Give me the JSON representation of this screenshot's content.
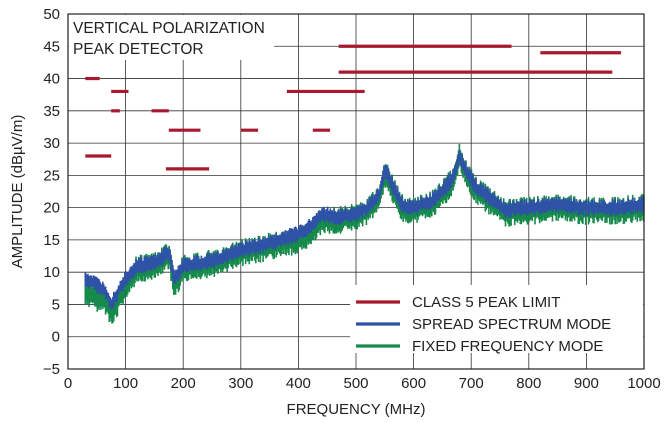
{
  "chart_data": {
    "type": "line",
    "xlabel": "FREQUENCY (MHz)",
    "ylabel": "AMPLITUDE (dBµV/m)",
    "xlim": [
      0,
      1000
    ],
    "ylim": [
      -5,
      50
    ],
    "x_ticks": [
      0,
      100,
      200,
      300,
      400,
      500,
      600,
      700,
      800,
      900,
      1000
    ],
    "y_ticks": [
      -5,
      0,
      5,
      10,
      15,
      20,
      25,
      30,
      35,
      40,
      45,
      50
    ],
    "grid": true,
    "annotation_lines": [
      "VERTICAL POLARIZATION",
      "PEAK DETECTOR"
    ],
    "legend_position": "bottom-right",
    "series": [
      {
        "name": "CLASS 5 PEAK LIMIT",
        "color": "#a6192e",
        "segments": [
          [
            30,
            55,
            40
          ],
          [
            75,
            105,
            38
          ],
          [
            75,
            90,
            35
          ],
          [
            145,
            175,
            35
          ],
          [
            30,
            75,
            28
          ],
          [
            175,
            230,
            32
          ],
          [
            300,
            330,
            32
          ],
          [
            425,
            455,
            32
          ],
          [
            170,
            245,
            26
          ],
          [
            380,
            515,
            38
          ],
          [
            470,
            770,
            45
          ],
          [
            820,
            960,
            44
          ],
          [
            470,
            945,
            41
          ]
        ]
      },
      {
        "name": "SPREAD SPECTRUM MODE",
        "color": "#2e52a6",
        "x": [
          30,
          50,
          65,
          75,
          90,
          100,
          120,
          150,
          175,
          185,
          200,
          230,
          260,
          300,
          350,
          400,
          420,
          440,
          470,
          500,
          520,
          540,
          550,
          560,
          580,
          600,
          630,
          650,
          670,
          680,
          690,
          710,
          740,
          760,
          780,
          800,
          850,
          900,
          950,
          1000
        ],
        "y": [
          9,
          8,
          7,
          5,
          7.5,
          9,
          11,
          11.5,
          13,
          9,
          11,
          11.5,
          12,
          13.5,
          14.5,
          16,
          17,
          19,
          18.5,
          19,
          20,
          22,
          26,
          24,
          20.5,
          20,
          21,
          22.5,
          25,
          28,
          26,
          23,
          21,
          19.5,
          20,
          20,
          20.5,
          20,
          20,
          20.5
        ],
        "band": 1.3
      },
      {
        "name": "FIXED FREQUENCY MODE",
        "color": "#168a4b",
        "x": [
          30,
          50,
          65,
          75,
          90,
          100,
          120,
          150,
          175,
          185,
          200,
          230,
          260,
          300,
          350,
          400,
          420,
          440,
          470,
          500,
          520,
          540,
          550,
          560,
          580,
          600,
          630,
          650,
          670,
          680,
          690,
          710,
          740,
          760,
          780,
          800,
          850,
          900,
          950,
          1000
        ],
        "y": [
          7,
          6,
          5.5,
          3.5,
          6,
          8,
          10.5,
          11,
          12.5,
          8,
          10.5,
          11,
          11.5,
          13,
          14,
          15,
          16,
          18,
          18,
          18.5,
          19.5,
          21.5,
          25.5,
          23.5,
          20,
          19.5,
          20.5,
          22,
          24.5,
          28,
          25.5,
          22.5,
          20.5,
          19,
          19.5,
          19.5,
          20,
          19.5,
          19.5,
          20
        ],
        "band": 2.2
      }
    ]
  }
}
